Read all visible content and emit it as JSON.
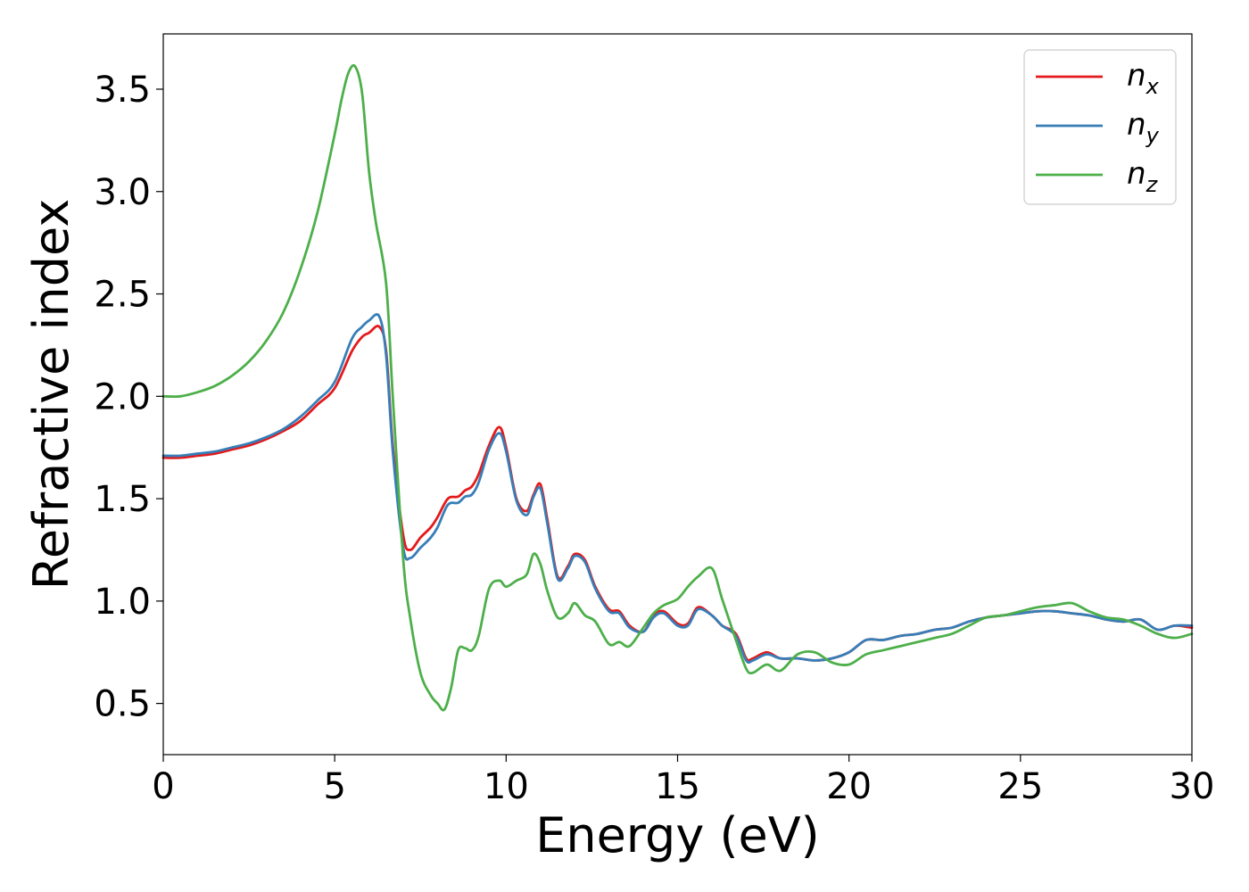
{
  "chart_data": {
    "type": "line",
    "xlabel": "Energy (eV)",
    "ylabel": "Refractive index",
    "xlim": [
      0,
      30
    ],
    "ylim": [
      0.25,
      3.77
    ],
    "xticks": [
      0,
      5,
      10,
      15,
      20,
      25,
      30
    ],
    "yticks": [
      0.5,
      1.0,
      1.5,
      2.0,
      2.5,
      3.0,
      3.5
    ],
    "grid": false,
    "legend_position": "top-right",
    "series": [
      {
        "name": "n_x",
        "label_base": "n",
        "label_sub": "x",
        "color": "#e41a1c",
        "x": [
          0,
          0.5,
          1,
          1.5,
          2,
          2.5,
          3,
          3.5,
          4,
          4.5,
          5,
          5.5,
          5.8,
          6,
          6.3,
          6.5,
          6.7,
          7,
          7.2,
          7.5,
          7.8,
          8,
          8.3,
          8.6,
          8.8,
          9,
          9.2,
          9.5,
          9.8,
          10,
          10.3,
          10.6,
          10.8,
          11,
          11.2,
          11.5,
          11.8,
          12,
          12.3,
          12.6,
          13,
          13.3,
          13.6,
          14,
          14.3,
          14.6,
          15,
          15.3,
          15.6,
          16,
          16.3,
          16.7,
          17,
          17.2,
          17.6,
          18,
          18.5,
          19,
          19.5,
          20,
          20.5,
          21,
          21.5,
          22,
          22.5,
          23,
          23.5,
          24,
          24.5,
          25,
          25.5,
          26,
          26.5,
          27,
          27.5,
          28,
          28.5,
          29,
          29.5,
          30
        ],
        "y": [
          1.7,
          1.7,
          1.71,
          1.72,
          1.74,
          1.76,
          1.79,
          1.83,
          1.88,
          1.96,
          2.04,
          2.22,
          2.29,
          2.31,
          2.34,
          2.22,
          1.75,
          1.32,
          1.25,
          1.31,
          1.36,
          1.41,
          1.5,
          1.51,
          1.54,
          1.56,
          1.62,
          1.76,
          1.85,
          1.75,
          1.5,
          1.44,
          1.52,
          1.57,
          1.4,
          1.12,
          1.17,
          1.23,
          1.2,
          1.07,
          0.96,
          0.95,
          0.88,
          0.85,
          0.93,
          0.95,
          0.89,
          0.89,
          0.97,
          0.93,
          0.88,
          0.84,
          0.72,
          0.72,
          0.75,
          0.72,
          0.72,
          0.71,
          0.72,
          0.75,
          0.81,
          0.81,
          0.83,
          0.84,
          0.86,
          0.87,
          0.9,
          0.92,
          0.93,
          0.94,
          0.95,
          0.95,
          0.94,
          0.93,
          0.91,
          0.9,
          0.91,
          0.86,
          0.88,
          0.87
        ]
      },
      {
        "name": "n_y",
        "label_base": "n",
        "label_sub": "y",
        "color": "#377eb8",
        "x": [
          0,
          0.5,
          1,
          1.5,
          2,
          2.5,
          3,
          3.5,
          4,
          4.5,
          5,
          5.5,
          5.8,
          6,
          6.3,
          6.5,
          6.7,
          7,
          7.2,
          7.5,
          7.8,
          8,
          8.3,
          8.6,
          8.8,
          9,
          9.2,
          9.5,
          9.8,
          10,
          10.3,
          10.6,
          10.8,
          11,
          11.2,
          11.5,
          11.8,
          12,
          12.3,
          12.6,
          13,
          13.3,
          13.6,
          14,
          14.3,
          14.6,
          15,
          15.3,
          15.6,
          16,
          16.3,
          16.7,
          17,
          17.2,
          17.6,
          18,
          18.5,
          19,
          19.5,
          20,
          20.5,
          21,
          21.5,
          22,
          22.5,
          23,
          23.5,
          24,
          24.5,
          25,
          25.5,
          26,
          26.5,
          27,
          27.5,
          28,
          28.5,
          29,
          29.5,
          30
        ],
        "y": [
          1.71,
          1.71,
          1.72,
          1.73,
          1.75,
          1.77,
          1.8,
          1.84,
          1.9,
          1.98,
          2.07,
          2.28,
          2.34,
          2.37,
          2.39,
          2.2,
          1.72,
          1.26,
          1.21,
          1.26,
          1.31,
          1.36,
          1.47,
          1.48,
          1.51,
          1.52,
          1.58,
          1.74,
          1.82,
          1.73,
          1.49,
          1.42,
          1.51,
          1.55,
          1.38,
          1.11,
          1.16,
          1.22,
          1.19,
          1.06,
          0.95,
          0.94,
          0.87,
          0.85,
          0.92,
          0.94,
          0.88,
          0.88,
          0.96,
          0.93,
          0.88,
          0.83,
          0.71,
          0.71,
          0.74,
          0.72,
          0.72,
          0.71,
          0.72,
          0.75,
          0.81,
          0.81,
          0.83,
          0.84,
          0.86,
          0.87,
          0.9,
          0.92,
          0.93,
          0.94,
          0.95,
          0.95,
          0.94,
          0.93,
          0.91,
          0.9,
          0.91,
          0.86,
          0.88,
          0.88
        ]
      },
      {
        "name": "n_z",
        "label_base": "n",
        "label_sub": "z",
        "color": "#4daf4a",
        "x": [
          0,
          0.5,
          1,
          1.5,
          2,
          2.5,
          3,
          3.5,
          4,
          4.5,
          5,
          5.2,
          5.4,
          5.6,
          5.8,
          6,
          6.2,
          6.5,
          6.7,
          7,
          7.2,
          7.5,
          7.8,
          8,
          8.2,
          8.4,
          8.6,
          8.8,
          9,
          9.2,
          9.5,
          9.8,
          10,
          10.3,
          10.6,
          10.8,
          11,
          11.2,
          11.5,
          11.8,
          12,
          12.3,
          12.6,
          13,
          13.3,
          13.6,
          14,
          14.3,
          14.6,
          15,
          15.3,
          15.6,
          16,
          16.3,
          16.7,
          17,
          17.2,
          17.6,
          18,
          18.5,
          19,
          19.5,
          20,
          20.5,
          21,
          21.5,
          22,
          22.5,
          23,
          23.5,
          24,
          24.5,
          25,
          25.5,
          26,
          26.5,
          27,
          27.5,
          28,
          28.5,
          29,
          29.5,
          30
        ],
        "y": [
          2.0,
          2.0,
          2.02,
          2.05,
          2.1,
          2.17,
          2.27,
          2.41,
          2.62,
          2.9,
          3.28,
          3.45,
          3.58,
          3.61,
          3.48,
          3.1,
          2.85,
          2.55,
          1.98,
          1.2,
          0.92,
          0.65,
          0.54,
          0.5,
          0.47,
          0.58,
          0.76,
          0.77,
          0.76,
          0.83,
          1.06,
          1.1,
          1.07,
          1.1,
          1.13,
          1.23,
          1.18,
          1.05,
          0.92,
          0.94,
          0.99,
          0.93,
          0.9,
          0.79,
          0.8,
          0.78,
          0.87,
          0.94,
          0.98,
          1.01,
          1.07,
          1.12,
          1.16,
          1.01,
          0.81,
          0.67,
          0.65,
          0.69,
          0.66,
          0.74,
          0.75,
          0.7,
          0.69,
          0.74,
          0.76,
          0.78,
          0.8,
          0.82,
          0.84,
          0.88,
          0.92,
          0.93,
          0.95,
          0.97,
          0.98,
          0.99,
          0.95,
          0.92,
          0.91,
          0.88,
          0.84,
          0.82,
          0.84
        ]
      }
    ]
  }
}
